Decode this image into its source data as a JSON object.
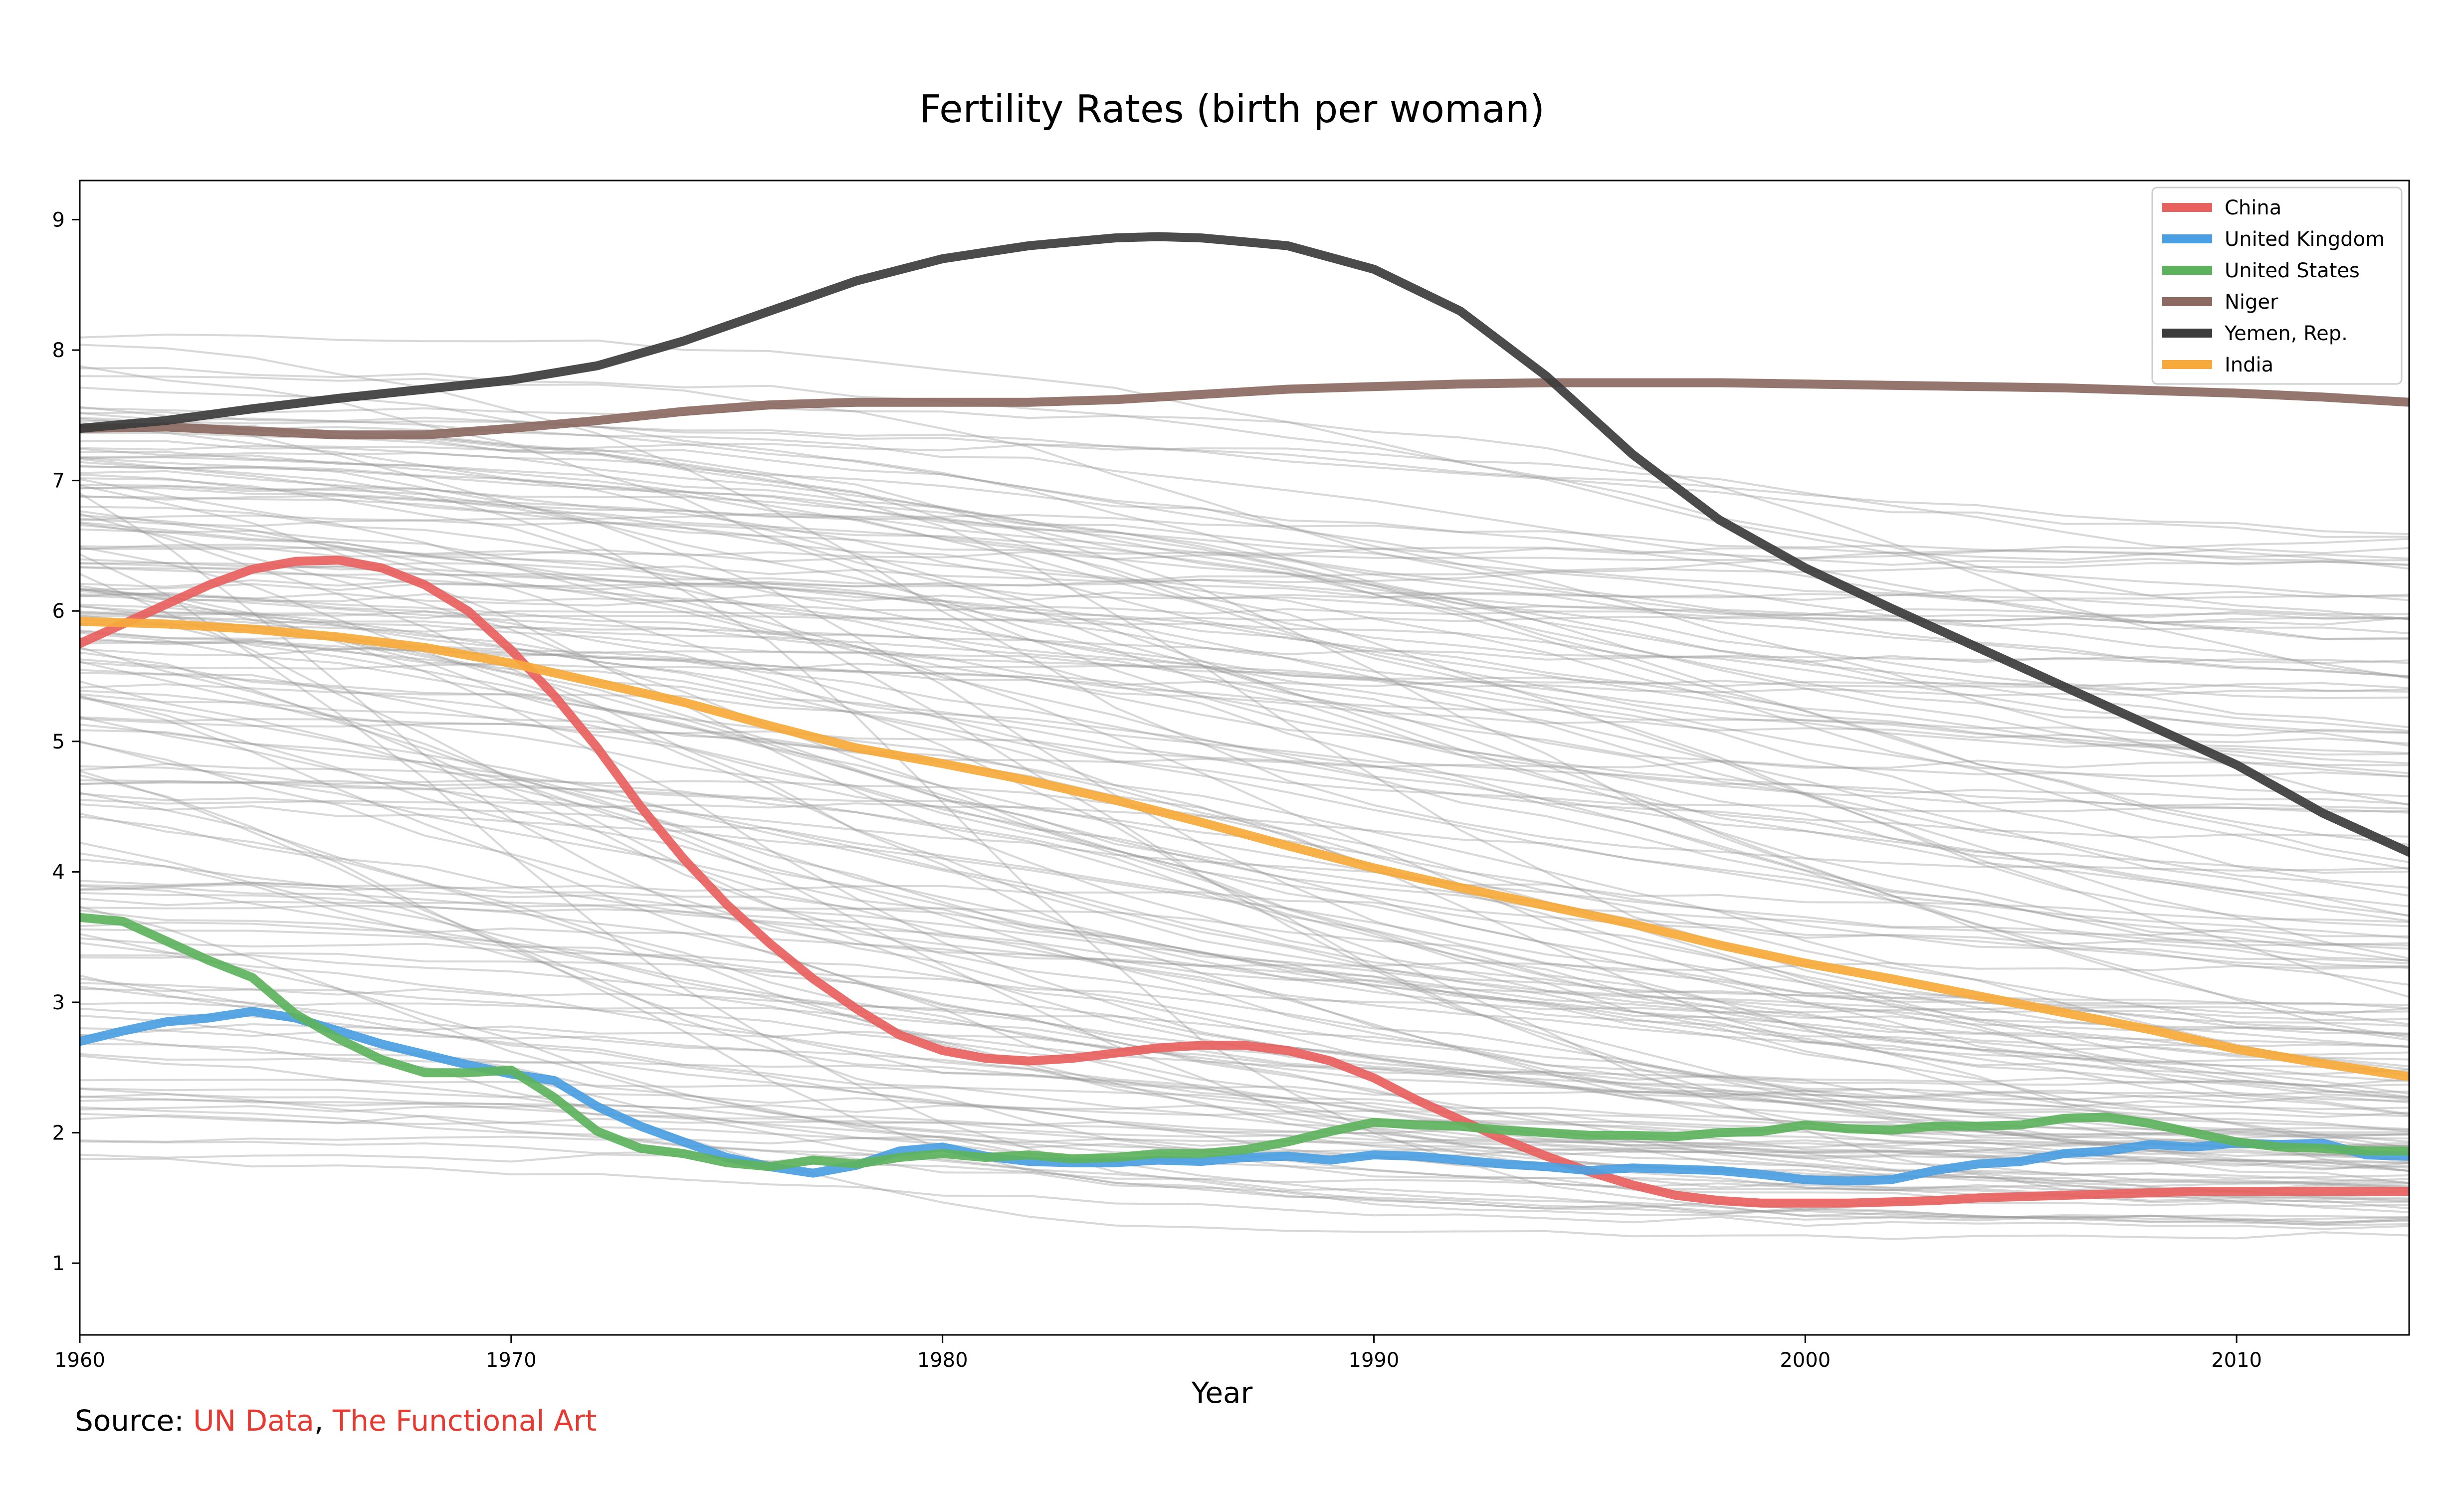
{
  "chart_data": {
    "type": "line",
    "title": "Fertility Rates (birth per woman)",
    "xlabel": "Year",
    "ylabel": "",
    "xlim": [
      1960,
      2014
    ],
    "ylim": [
      0.45,
      9.3
    ],
    "x_ticks": [
      1960,
      1970,
      1980,
      1990,
      2000,
      2010
    ],
    "y_ticks": [
      1,
      2,
      3,
      4,
      5,
      6,
      7,
      8,
      9
    ],
    "grid": false,
    "legend_position": "top-right",
    "background_series_color": "#999999",
    "highlighted_series": [
      {
        "name": "China",
        "color": "#e8615f",
        "points": [
          [
            1960,
            5.75
          ],
          [
            1961,
            5.9
          ],
          [
            1962,
            6.05
          ],
          [
            1963,
            6.2
          ],
          [
            1964,
            6.32
          ],
          [
            1965,
            6.38
          ],
          [
            1966,
            6.39
          ],
          [
            1967,
            6.33
          ],
          [
            1968,
            6.2
          ],
          [
            1969,
            6.0
          ],
          [
            1970,
            5.7
          ],
          [
            1971,
            5.35
          ],
          [
            1972,
            4.95
          ],
          [
            1973,
            4.5
          ],
          [
            1974,
            4.1
          ],
          [
            1975,
            3.75
          ],
          [
            1976,
            3.45
          ],
          [
            1977,
            3.18
          ],
          [
            1978,
            2.95
          ],
          [
            1979,
            2.75
          ],
          [
            1980,
            2.63
          ],
          [
            1981,
            2.57
          ],
          [
            1982,
            2.55
          ],
          [
            1983,
            2.57
          ],
          [
            1984,
            2.61
          ],
          [
            1985,
            2.65
          ],
          [
            1986,
            2.67
          ],
          [
            1987,
            2.67
          ],
          [
            1988,
            2.63
          ],
          [
            1989,
            2.55
          ],
          [
            1990,
            2.42
          ],
          [
            1991,
            2.25
          ],
          [
            1992,
            2.1
          ],
          [
            1993,
            1.95
          ],
          [
            1994,
            1.82
          ],
          [
            1995,
            1.7
          ],
          [
            1996,
            1.6
          ],
          [
            1997,
            1.52
          ],
          [
            1998,
            1.48
          ],
          [
            1999,
            1.46
          ],
          [
            2000,
            1.46
          ],
          [
            2001,
            1.46
          ],
          [
            2002,
            1.47
          ],
          [
            2003,
            1.48
          ],
          [
            2004,
            1.5
          ],
          [
            2005,
            1.51
          ],
          [
            2006,
            1.52
          ],
          [
            2007,
            1.53
          ],
          [
            2008,
            1.54
          ],
          [
            2009,
            1.55
          ],
          [
            2010,
            1.55
          ],
          [
            2011,
            1.55
          ],
          [
            2012,
            1.55
          ],
          [
            2013,
            1.55
          ],
          [
            2014,
            1.55
          ]
        ]
      },
      {
        "name": "United Kingdom",
        "color": "#4a9fe2",
        "points": [
          [
            1960,
            2.7
          ],
          [
            1961,
            2.78
          ],
          [
            1962,
            2.85
          ],
          [
            1963,
            2.88
          ],
          [
            1964,
            2.93
          ],
          [
            1965,
            2.88
          ],
          [
            1966,
            2.78
          ],
          [
            1967,
            2.68
          ],
          [
            1968,
            2.6
          ],
          [
            1969,
            2.52
          ],
          [
            1970,
            2.45
          ],
          [
            1971,
            2.4
          ],
          [
            1972,
            2.2
          ],
          [
            1973,
            2.05
          ],
          [
            1974,
            1.93
          ],
          [
            1975,
            1.81
          ],
          [
            1976,
            1.74
          ],
          [
            1977,
            1.69
          ],
          [
            1978,
            1.75
          ],
          [
            1979,
            1.86
          ],
          [
            1980,
            1.89
          ],
          [
            1981,
            1.82
          ],
          [
            1982,
            1.78
          ],
          [
            1983,
            1.77
          ],
          [
            1984,
            1.77
          ],
          [
            1985,
            1.79
          ],
          [
            1986,
            1.78
          ],
          [
            1987,
            1.81
          ],
          [
            1988,
            1.82
          ],
          [
            1989,
            1.79
          ],
          [
            1990,
            1.83
          ],
          [
            1991,
            1.82
          ],
          [
            1992,
            1.79
          ],
          [
            1993,
            1.76
          ],
          [
            1994,
            1.74
          ],
          [
            1995,
            1.71
          ],
          [
            1996,
            1.73
          ],
          [
            1997,
            1.72
          ],
          [
            1998,
            1.71
          ],
          [
            1999,
            1.68
          ],
          [
            2000,
            1.64
          ],
          [
            2001,
            1.63
          ],
          [
            2002,
            1.64
          ],
          [
            2003,
            1.71
          ],
          [
            2004,
            1.76
          ],
          [
            2005,
            1.78
          ],
          [
            2006,
            1.84
          ],
          [
            2007,
            1.86
          ],
          [
            2008,
            1.91
          ],
          [
            2009,
            1.89
          ],
          [
            2010,
            1.92
          ],
          [
            2011,
            1.91
          ],
          [
            2012,
            1.92
          ],
          [
            2013,
            1.83
          ],
          [
            2014,
            1.82
          ]
        ]
      },
      {
        "name": "United States",
        "color": "#5db35d",
        "points": [
          [
            1960,
            3.65
          ],
          [
            1961,
            3.62
          ],
          [
            1962,
            3.47
          ],
          [
            1963,
            3.32
          ],
          [
            1964,
            3.19
          ],
          [
            1965,
            2.91
          ],
          [
            1966,
            2.72
          ],
          [
            1967,
            2.56
          ],
          [
            1968,
            2.46
          ],
          [
            1969,
            2.46
          ],
          [
            1970,
            2.48
          ],
          [
            1971,
            2.27
          ],
          [
            1972,
            2.01
          ],
          [
            1973,
            1.88
          ],
          [
            1974,
            1.84
          ],
          [
            1975,
            1.77
          ],
          [
            1976,
            1.74
          ],
          [
            1977,
            1.79
          ],
          [
            1978,
            1.76
          ],
          [
            1979,
            1.81
          ],
          [
            1980,
            1.84
          ],
          [
            1981,
            1.81
          ],
          [
            1982,
            1.83
          ],
          [
            1983,
            1.8
          ],
          [
            1984,
            1.81
          ],
          [
            1985,
            1.84
          ],
          [
            1986,
            1.84
          ],
          [
            1987,
            1.87
          ],
          [
            1988,
            1.93
          ],
          [
            1989,
            2.01
          ],
          [
            1990,
            2.08
          ],
          [
            1991,
            2.06
          ],
          [
            1992,
            2.05
          ],
          [
            1993,
            2.02
          ],
          [
            1994,
            2.0
          ],
          [
            1995,
            1.98
          ],
          [
            1996,
            1.98
          ],
          [
            1997,
            1.97
          ],
          [
            1998,
            2.0
          ],
          [
            1999,
            2.01
          ],
          [
            2000,
            2.06
          ],
          [
            2001,
            2.03
          ],
          [
            2002,
            2.02
          ],
          [
            2003,
            2.05
          ],
          [
            2004,
            2.05
          ],
          [
            2005,
            2.06
          ],
          [
            2006,
            2.11
          ],
          [
            2007,
            2.12
          ],
          [
            2008,
            2.07
          ],
          [
            2009,
            2.0
          ],
          [
            2010,
            1.93
          ],
          [
            2011,
            1.89
          ],
          [
            2012,
            1.88
          ],
          [
            2013,
            1.86
          ],
          [
            2014,
            1.86
          ]
        ]
      },
      {
        "name": "Niger",
        "color": "#8c6a62",
        "points": [
          [
            1960,
            7.4
          ],
          [
            1962,
            7.41
          ],
          [
            1964,
            7.38
          ],
          [
            1966,
            7.35
          ],
          [
            1968,
            7.35
          ],
          [
            1970,
            7.4
          ],
          [
            1972,
            7.46
          ],
          [
            1974,
            7.53
          ],
          [
            1976,
            7.58
          ],
          [
            1978,
            7.6
          ],
          [
            1980,
            7.6
          ],
          [
            1982,
            7.6
          ],
          [
            1984,
            7.62
          ],
          [
            1986,
            7.66
          ],
          [
            1988,
            7.7
          ],
          [
            1990,
            7.72
          ],
          [
            1992,
            7.74
          ],
          [
            1994,
            7.75
          ],
          [
            1996,
            7.75
          ],
          [
            1998,
            7.75
          ],
          [
            2000,
            7.74
          ],
          [
            2002,
            7.73
          ],
          [
            2004,
            7.72
          ],
          [
            2006,
            7.71
          ],
          [
            2008,
            7.69
          ],
          [
            2010,
            7.67
          ],
          [
            2012,
            7.64
          ],
          [
            2014,
            7.6
          ]
        ]
      },
      {
        "name": "Yemen, Rep.",
        "color": "#3c3c3c",
        "points": [
          [
            1960,
            7.4
          ],
          [
            1962,
            7.46
          ],
          [
            1964,
            7.55
          ],
          [
            1966,
            7.63
          ],
          [
            1968,
            7.7
          ],
          [
            1970,
            7.77
          ],
          [
            1972,
            7.88
          ],
          [
            1974,
            8.07
          ],
          [
            1976,
            8.3
          ],
          [
            1978,
            8.53
          ],
          [
            1980,
            8.7
          ],
          [
            1982,
            8.8
          ],
          [
            1984,
            8.86
          ],
          [
            1985,
            8.87
          ],
          [
            1986,
            8.86
          ],
          [
            1988,
            8.8
          ],
          [
            1990,
            8.62
          ],
          [
            1992,
            8.3
          ],
          [
            1994,
            7.8
          ],
          [
            1996,
            7.2
          ],
          [
            1998,
            6.7
          ],
          [
            2000,
            6.33
          ],
          [
            2002,
            6.02
          ],
          [
            2004,
            5.72
          ],
          [
            2006,
            5.42
          ],
          [
            2008,
            5.12
          ],
          [
            2010,
            4.82
          ],
          [
            2012,
            4.45
          ],
          [
            2014,
            4.15
          ]
        ]
      },
      {
        "name": "India",
        "color": "#f7a93a",
        "points": [
          [
            1960,
            5.92
          ],
          [
            1962,
            5.9
          ],
          [
            1964,
            5.86
          ],
          [
            1966,
            5.8
          ],
          [
            1968,
            5.72
          ],
          [
            1970,
            5.6
          ],
          [
            1972,
            5.45
          ],
          [
            1974,
            5.3
          ],
          [
            1976,
            5.12
          ],
          [
            1978,
            4.95
          ],
          [
            1980,
            4.83
          ],
          [
            1982,
            4.7
          ],
          [
            1984,
            4.55
          ],
          [
            1986,
            4.38
          ],
          [
            1988,
            4.2
          ],
          [
            1990,
            4.03
          ],
          [
            1992,
            3.88
          ],
          [
            1994,
            3.74
          ],
          [
            1996,
            3.6
          ],
          [
            1998,
            3.44
          ],
          [
            2000,
            3.3
          ],
          [
            2002,
            3.18
          ],
          [
            2004,
            3.05
          ],
          [
            2006,
            2.92
          ],
          [
            2008,
            2.79
          ],
          [
            2010,
            2.64
          ],
          [
            2012,
            2.53
          ],
          [
            2014,
            2.43
          ]
        ]
      }
    ]
  },
  "source": {
    "prefix": "Source: ",
    "link1": "UN Data",
    "separator": ", ",
    "link2": "The Functional Art"
  }
}
